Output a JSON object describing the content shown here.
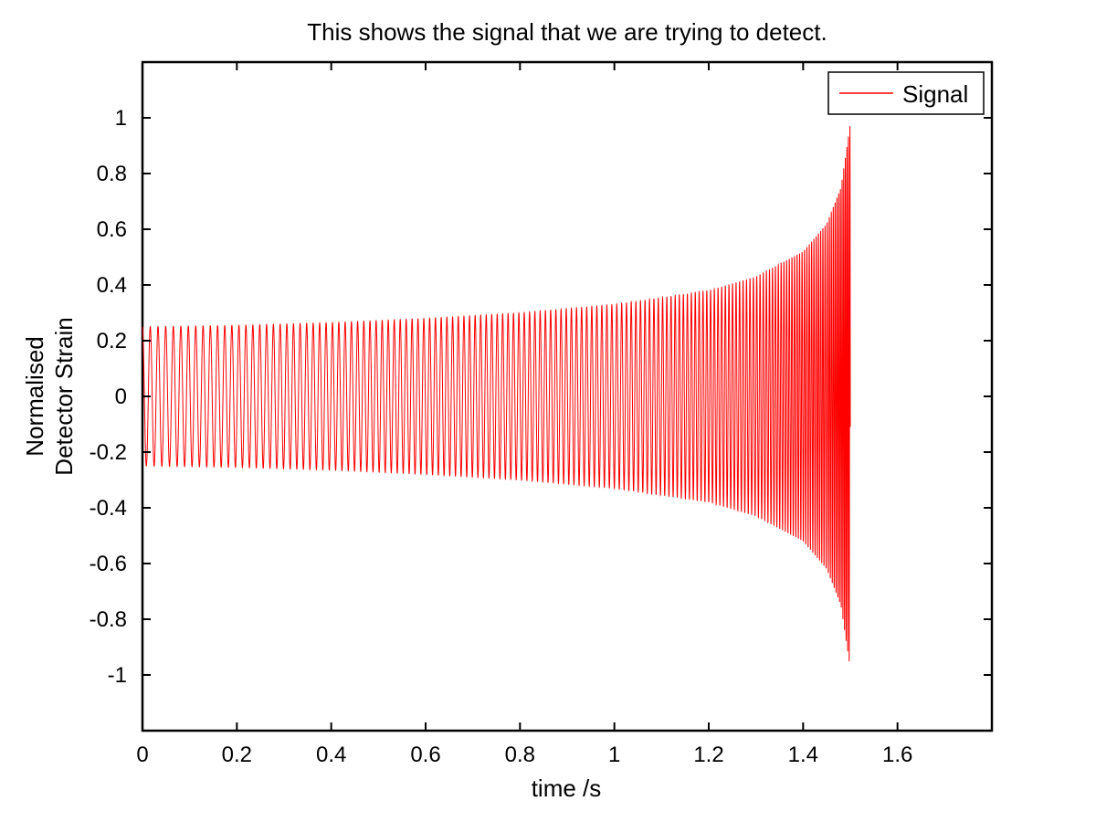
{
  "chart_data": {
    "type": "line",
    "title": "This shows the signal that we are trying to detect.",
    "xlabel": "time /s",
    "ylabel_lines": [
      "Normalised",
      "Detector Strain"
    ],
    "xlim": [
      0,
      1.8
    ],
    "ylim": [
      -1.2,
      1.2
    ],
    "xticks": [
      0,
      0.2,
      0.4,
      0.6,
      0.8,
      1,
      1.2,
      1.4,
      1.6
    ],
    "xtick_labels": [
      "0",
      "0.2",
      "0.4",
      "0.6",
      "0.8",
      "1",
      "1.2",
      "1.4",
      "1.6"
    ],
    "yticks": [
      1,
      0.8,
      0.6,
      0.4,
      0.2,
      0,
      -0.2,
      -0.4,
      -0.6,
      -0.8,
      -1
    ],
    "ytick_labels": [
      "1",
      "0.8",
      "0.6",
      "0.4",
      "0.2",
      "0",
      "-0.2",
      "-0.4",
      "-0.6",
      "-0.8",
      "-1"
    ],
    "grid": false,
    "legend_position": "top-right",
    "series": [
      {
        "name": "Signal",
        "color": "#ff0000",
        "description_values": {
          "t_start": 0,
          "t_end": 1.5,
          "envelope": [
            [
              0.0,
              0.25
            ],
            [
              0.2,
              0.255
            ],
            [
              0.4,
              0.265
            ],
            [
              0.6,
              0.28
            ],
            [
              0.8,
              0.3
            ],
            [
              1.0,
              0.33
            ],
            [
              1.2,
              0.38
            ],
            [
              1.3,
              0.43
            ],
            [
              1.4,
              0.52
            ],
            [
              1.45,
              0.62
            ],
            [
              1.48,
              0.75
            ],
            [
              1.5,
              0.98
            ]
          ],
          "frequency_hz": [
            [
              0.0,
              60
            ],
            [
              1.0,
              95
            ],
            [
              1.3,
              140
            ],
            [
              1.45,
              220
            ],
            [
              1.5,
              320
            ]
          ]
        }
      }
    ]
  }
}
